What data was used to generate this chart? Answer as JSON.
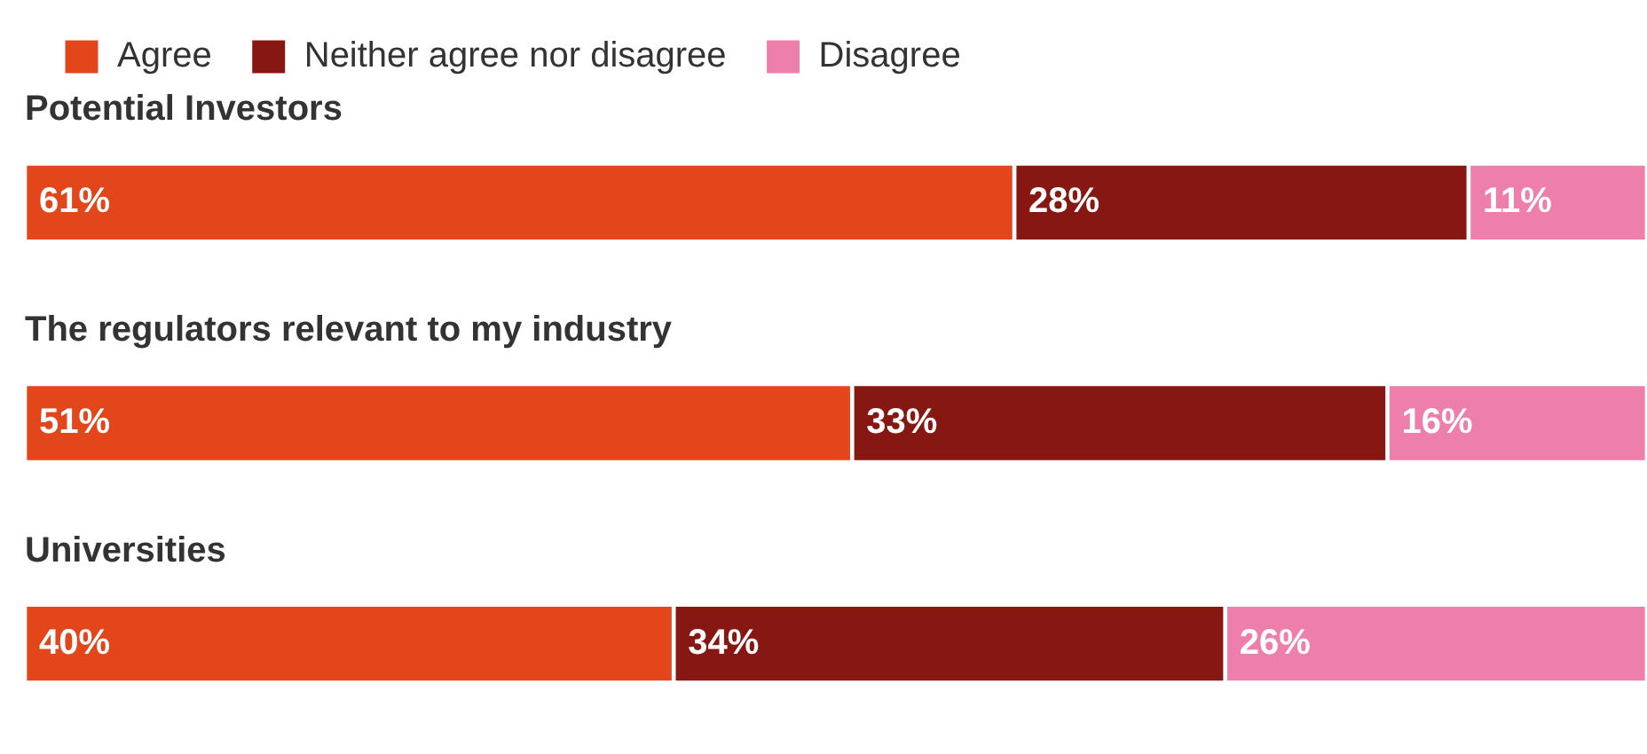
{
  "chart_data": {
    "type": "bar",
    "orientation": "horizontal",
    "stacked": true,
    "legend": "top left",
    "categories": [
      "Potential Investors",
      "The regulators relevant to my industry",
      "Universities"
    ],
    "series": [
      {
        "name": "Agree",
        "color": "#e2461a",
        "values": [
          61,
          51,
          40
        ],
        "value_labels": [
          "61%",
          "51%",
          "40%"
        ]
      },
      {
        "name": "Neither agree nor disagree",
        "color": "#871712",
        "values": [
          28,
          33,
          34
        ],
        "value_labels": [
          "28%",
          "33%",
          "34%"
        ]
      },
      {
        "name": "Disagree",
        "color": "#ee7fad",
        "values": [
          11,
          16,
          26
        ],
        "value_labels": [
          "11%",
          "16%",
          "26%"
        ]
      }
    ]
  }
}
